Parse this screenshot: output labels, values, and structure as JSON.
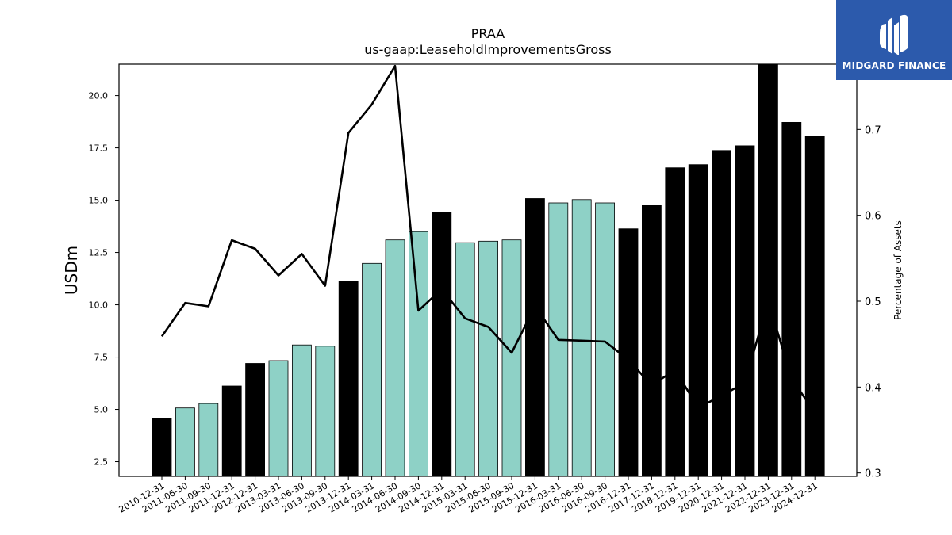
{
  "chart_data": {
    "type": "bar",
    "title": "PRAA",
    "subtitle": "us-gaap:LeaseholdImprovementsGross",
    "ylabel": "USDm",
    "y2label": "Percentage of Assets",
    "ylim": [
      1.8,
      21.5
    ],
    "y2lim": [
      0.296,
      0.776
    ],
    "yticks": [
      2.5,
      5.0,
      7.5,
      10.0,
      12.5,
      15.0,
      17.5,
      20.0
    ],
    "y2ticks": [
      0.3,
      0.4,
      0.5,
      0.6,
      0.7
    ],
    "categories": [
      "2010-12-31",
      "2011-06-30",
      "2011-09-30",
      "2011-12-31",
      "2012-12-31",
      "2013-03-31",
      "2013-06-30",
      "2013-09-30",
      "2013-12-31",
      "2014-03-31",
      "2014-06-30",
      "2014-09-30",
      "2014-12-31",
      "2015-03-31",
      "2015-06-30",
      "2015-09-30",
      "2015-12-31",
      "2016-03-31",
      "2016-06-30",
      "2016-09-30",
      "2016-12-31",
      "2017-12-31",
      "2018-12-31",
      "2019-12-31",
      "2020-12-31",
      "2021-12-31",
      "2022-12-31",
      "2023-12-31",
      "2024-12-31"
    ],
    "series": [
      {
        "values": [
          4.55,
          5.07,
          5.28,
          6.12,
          7.2,
          7.33,
          8.08,
          8.02,
          11.13,
          11.98,
          13.1,
          13.5,
          14.42,
          12.97,
          13.04,
          13.1,
          15.08,
          14.87,
          15.03,
          14.87,
          13.63,
          14.74,
          16.55,
          16.7,
          17.38,
          17.6,
          21.6,
          18.72,
          18.06
        ],
        "bar_types": [
          "annual",
          "quarterly",
          "quarterly",
          "annual",
          "annual",
          "quarterly",
          "quarterly",
          "quarterly",
          "annual",
          "quarterly",
          "quarterly",
          "quarterly",
          "annual",
          "quarterly",
          "quarterly",
          "quarterly",
          "annual",
          "quarterly",
          "quarterly",
          "quarterly",
          "annual",
          "annual",
          "annual",
          "annual",
          "annual",
          "annual",
          "annual",
          "annual",
          "annual"
        ]
      },
      {
        "axis": "right",
        "type": "line",
        "values": [
          0.459,
          0.498,
          0.494,
          0.571,
          0.561,
          0.53,
          0.555,
          0.518,
          0.696,
          0.729,
          0.774,
          0.489,
          0.514,
          0.48,
          0.47,
          0.44,
          0.494,
          0.455,
          0.454,
          0.453,
          0.432,
          0.402,
          0.42,
          0.376,
          0.39,
          0.405,
          0.5,
          0.41,
          0.37
        ]
      }
    ],
    "colors": {
      "annual": "#000000",
      "quarterly": "#8ed1c6",
      "line": "#000000"
    },
    "grid": false
  },
  "logo": {
    "text": "MIDGARD FINANCE",
    "bg": "#2c5aac"
  }
}
